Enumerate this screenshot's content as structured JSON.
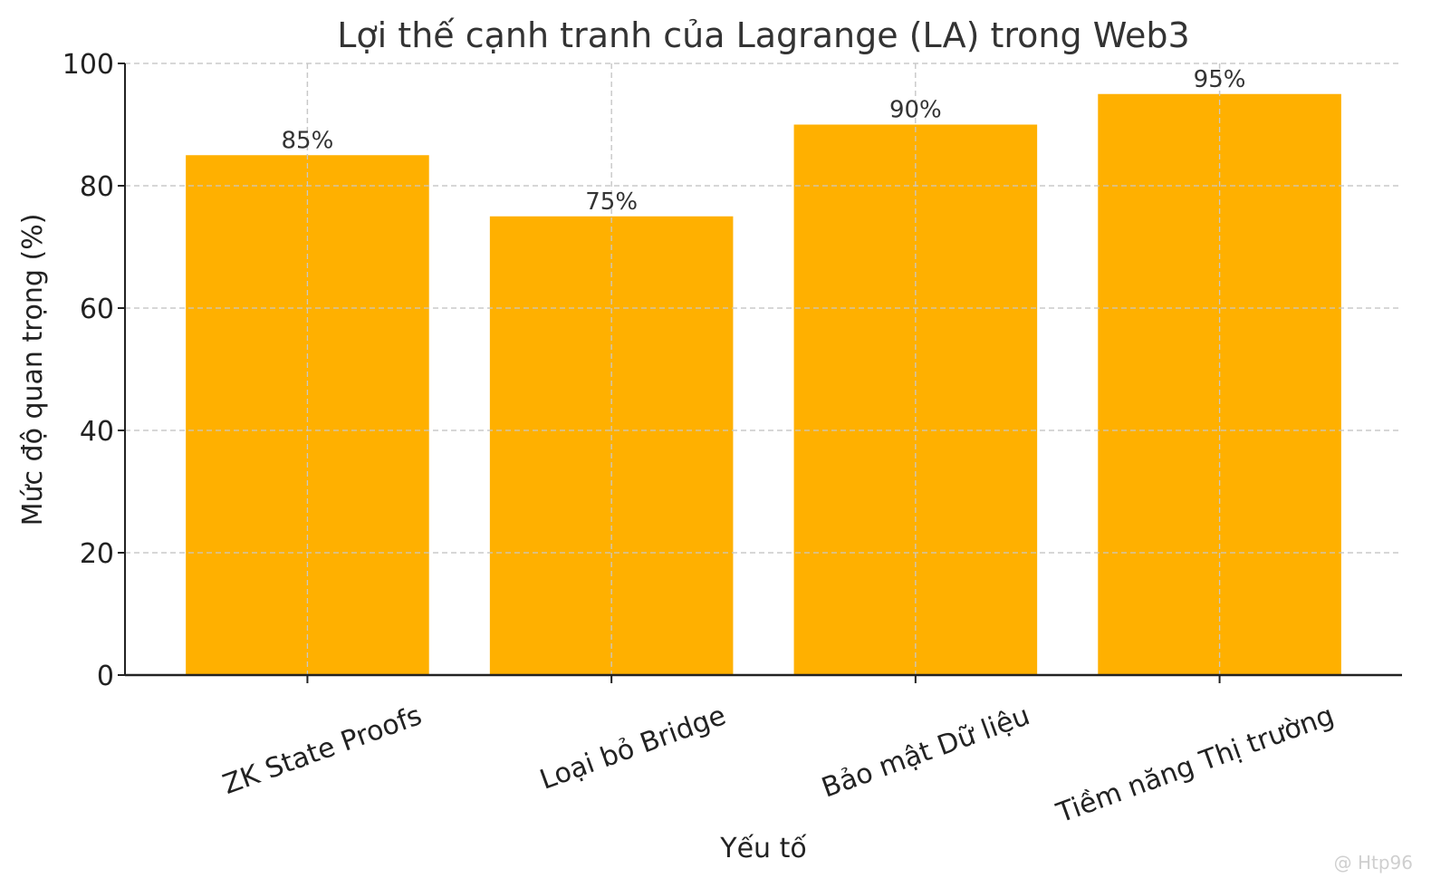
{
  "chart_data": {
    "type": "bar",
    "title": "Lợi thế cạnh tranh của Lagrange (LA) trong Web3",
    "xlabel": "Yếu tố",
    "ylabel": "Mức độ quan trọng (%)",
    "categories": [
      "ZK State Proofs",
      "Loại bỏ Bridge",
      "Bảo mật Dữ liệu",
      "Tiềm năng Thị trường"
    ],
    "values": [
      85,
      75,
      90,
      95
    ],
    "data_labels": [
      "85%",
      "75%",
      "90%",
      "95%"
    ],
    "ylim": [
      0,
      100
    ],
    "yticks": [
      0,
      20,
      40,
      60,
      80,
      100
    ],
    "ytick_labels": [
      "0",
      "20",
      "40",
      "60",
      "80",
      "100"
    ],
    "grid": true,
    "bar_color": "#FFB000"
  },
  "watermark": "@ Htp96"
}
